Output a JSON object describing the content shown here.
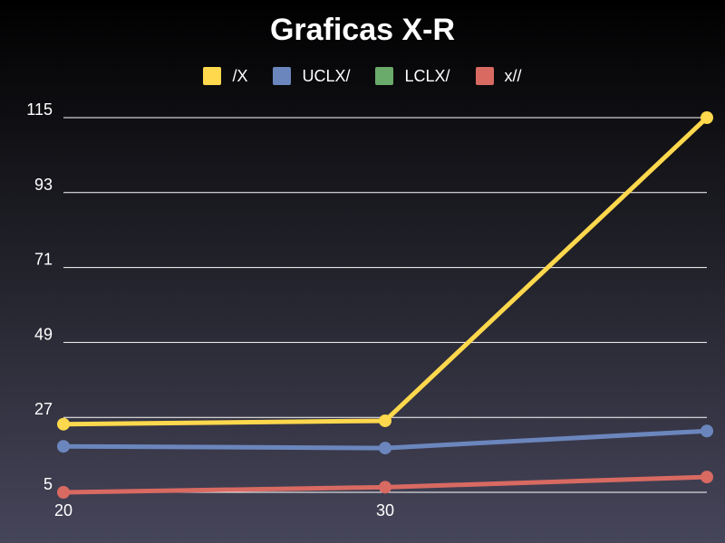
{
  "chart_data": {
    "type": "line",
    "title": "Graficas X-R",
    "xlabel": "",
    "ylabel": "",
    "x_tick_labels": [
      "20",
      "30"
    ],
    "x": [
      20,
      30,
      40
    ],
    "xlim": [
      20,
      40
    ],
    "y_ticks": [
      5,
      27,
      49,
      71,
      93,
      115
    ],
    "ylim": [
      5,
      115
    ],
    "grid": true,
    "legend_position": "top",
    "series": [
      {
        "name": "/X",
        "color": "#ffd84d",
        "values": [
          25,
          26,
          115
        ]
      },
      {
        "name": "UCLX/",
        "color": "#6b86bd",
        "values": [
          18.5,
          18,
          23
        ]
      },
      {
        "name": "LCLX/",
        "color": "#6aaa6a",
        "values": [
          null,
          null,
          null
        ]
      },
      {
        "name": "x//",
        "color": "#d86a62",
        "values": [
          5,
          6.5,
          9.5
        ]
      }
    ]
  }
}
